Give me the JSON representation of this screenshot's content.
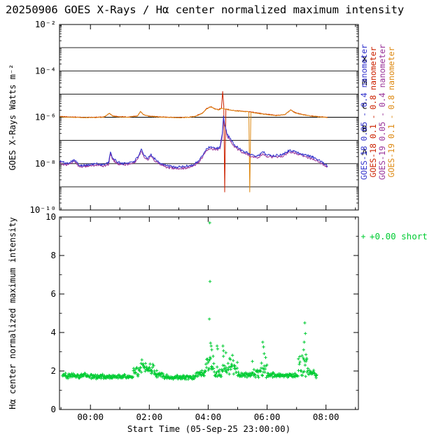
{
  "title": "20250906 GOES X-Rays / Hα center normalized maximum intensity",
  "colors": {
    "background": "#ffffff",
    "axis": "#000000"
  },
  "xaxis": {
    "label": "Start Time (05-Sep-25 23:00:00)",
    "range_hours": [
      -1.05,
      9.1
    ],
    "major_tick_hours": [
      0,
      2,
      4,
      6,
      8
    ],
    "tick_labels": [
      "00:00",
      "02:00",
      "04:00",
      "06:00",
      "08:00"
    ]
  },
  "chart_data": [
    {
      "type": "line",
      "name": "GOES X-Rays",
      "ylabel": "GOES X-Rays Watts m⁻²",
      "yscale": "log",
      "ylim": [
        1e-10,
        0.01
      ],
      "yticks": [
        {
          "value": 0.01,
          "label": "10⁻²"
        },
        {
          "value": 0.0001,
          "label": "10⁻⁴"
        },
        {
          "value": 1e-06,
          "label": "10⁻⁶"
        },
        {
          "value": 1e-08,
          "label": "10⁻⁸"
        },
        {
          "value": 1e-10,
          "label": "10⁻¹⁰"
        }
      ],
      "grid_lines": [
        0.001,
        0.0001,
        1e-05,
        1e-06,
        1e-07,
        1e-08,
        1e-09
      ],
      "flare_classes": [
        {
          "label": "X",
          "value": 0.00032
        },
        {
          "label": "M",
          "value": 3.2e-05
        },
        {
          "label": "C",
          "value": 3.2e-06
        },
        {
          "label": "B",
          "value": 3.2e-07
        },
        {
          "label": "A",
          "value": 3.2e-08
        }
      ],
      "series": [
        {
          "name": "GOES-18 0.05 - 0.4 nanometer",
          "color": "#3333cc",
          "jitter": 0.11,
          "points": [
            [
              -1.05,
              1.3e-08
            ],
            [
              -0.8,
              1e-08
            ],
            [
              -0.55,
              1.5e-08
            ],
            [
              -0.4,
              9e-09
            ],
            [
              -0.2,
              8.5e-09
            ],
            [
              0.0,
              9e-09
            ],
            [
              0.2,
              1e-08
            ],
            [
              0.45,
              9e-09
            ],
            [
              0.62,
              1.1e-08
            ],
            [
              0.68,
              3.2e-08
            ],
            [
              0.75,
              1.8e-08
            ],
            [
              0.9,
              1.2e-08
            ],
            [
              1.1,
              1e-08
            ],
            [
              1.3,
              1.1e-08
            ],
            [
              1.5,
              1.3e-08
            ],
            [
              1.62,
              2e-08
            ],
            [
              1.72,
              4.2e-08
            ],
            [
              1.82,
              2.2e-08
            ],
            [
              1.95,
              1.6e-08
            ],
            [
              2.05,
              2.6e-08
            ],
            [
              2.15,
              1.8e-08
            ],
            [
              2.35,
              1.1e-08
            ],
            [
              2.6,
              8e-09
            ],
            [
              2.9,
              7e-09
            ],
            [
              3.2,
              7.5e-09
            ],
            [
              3.5,
              9e-09
            ],
            [
              3.7,
              1.4e-08
            ],
            [
              3.85,
              2.8e-08
            ],
            [
              3.95,
              4.5e-08
            ],
            [
              4.1,
              5.5e-08
            ],
            [
              4.25,
              4.5e-08
            ],
            [
              4.4,
              5e-08
            ],
            [
              4.48,
              2e-07
            ],
            [
              4.52,
              1.15e-06
            ],
            [
              4.56,
              5e-07
            ],
            [
              4.65,
              1.8e-07
            ],
            [
              4.8,
              9e-08
            ],
            [
              4.95,
              5.5e-08
            ],
            [
              5.1,
              4e-08
            ],
            [
              5.3,
              3e-08
            ],
            [
              5.5,
              2.4e-08
            ],
            [
              5.7,
              2.2e-08
            ],
            [
              5.85,
              3.2e-08
            ],
            [
              5.95,
              2.6e-08
            ],
            [
              6.2,
              2.2e-08
            ],
            [
              6.5,
              2.4e-08
            ],
            [
              6.75,
              3.8e-08
            ],
            [
              6.9,
              3.4e-08
            ],
            [
              7.1,
              2.8e-08
            ],
            [
              7.3,
              2.4e-08
            ],
            [
              7.6,
              1.8e-08
            ],
            [
              7.8,
              1.3e-08
            ],
            [
              8.0,
              9e-09
            ],
            [
              8.05,
              8e-09
            ]
          ]
        },
        {
          "name": "GOES-18 0.1 - 0.8 nanometer",
          "color": "#cc2200",
          "jitter": 0.03,
          "points": [
            [
              -1.05,
              1.08e-06
            ],
            [
              -0.6,
              1.02e-06
            ],
            [
              -0.2,
              9.8e-07
            ],
            [
              0.1,
              1e-06
            ],
            [
              0.45,
              1.02e-06
            ],
            [
              0.65,
              1.45e-06
            ],
            [
              0.75,
              1.15e-06
            ],
            [
              1.0,
              1.05e-06
            ],
            [
              1.3,
              1.02e-06
            ],
            [
              1.6,
              1.15e-06
            ],
            [
              1.7,
              1.75e-06
            ],
            [
              1.8,
              1.3e-06
            ],
            [
              2.0,
              1.12e-06
            ],
            [
              2.3,
              1.05e-06
            ],
            [
              2.7,
              1e-06
            ],
            [
              3.1,
              9.8e-07
            ],
            [
              3.5,
              1.05e-06
            ],
            [
              3.8,
              1.5e-06
            ],
            [
              3.95,
              2.4e-06
            ],
            [
              4.1,
              2.9e-06
            ],
            [
              4.2,
              2.4e-06
            ],
            [
              4.35,
              2.1e-06
            ],
            [
              4.45,
              2.5e-06
            ],
            [
              4.49,
              1.3e-05
            ],
            [
              4.53,
              3e-06
            ],
            [
              4.56,
              6e-10
            ],
            [
              4.6,
              2.3e-06
            ],
            [
              4.8,
              2e-06
            ],
            [
              5.0,
              1.9e-06
            ],
            [
              5.2,
              1.8e-06
            ],
            [
              5.45,
              1.7e-06
            ],
            [
              5.7,
              1.5e-06
            ],
            [
              6.0,
              1.35e-06
            ],
            [
              6.3,
              1.2e-06
            ],
            [
              6.6,
              1.3e-06
            ],
            [
              6.8,
              2.1e-06
            ],
            [
              6.95,
              1.6e-06
            ],
            [
              7.2,
              1.3e-06
            ],
            [
              7.5,
              1.15e-06
            ],
            [
              7.8,
              1.05e-06
            ],
            [
              8.05,
              1e-06
            ]
          ]
        },
        {
          "name": "GOES-19 0.05 - 0.4 nanometer",
          "color": "#993399",
          "jitter": 0.11,
          "points": [
            [
              -1.05,
              1.1e-08
            ],
            [
              -0.8,
              8.5e-09
            ],
            [
              -0.55,
              1.3e-08
            ],
            [
              -0.4,
              8e-09
            ],
            [
              -0.2,
              7.5e-09
            ],
            [
              0.0,
              8e-09
            ],
            [
              0.2,
              9e-09
            ],
            [
              0.45,
              8e-09
            ],
            [
              0.62,
              9.5e-09
            ],
            [
              0.68,
              2.8e-08
            ],
            [
              0.75,
              1.5e-08
            ],
            [
              0.9,
              1e-08
            ],
            [
              1.1,
              9e-09
            ],
            [
              1.3,
              9.5e-09
            ],
            [
              1.5,
              1.1e-08
            ],
            [
              1.62,
              1.7e-08
            ],
            [
              1.72,
              3.6e-08
            ],
            [
              1.82,
              1.9e-08
            ],
            [
              1.95,
              1.4e-08
            ],
            [
              2.05,
              2.2e-08
            ],
            [
              2.15,
              1.5e-08
            ],
            [
              2.35,
              9.5e-09
            ],
            [
              2.6,
              7e-09
            ],
            [
              2.9,
              6e-09
            ],
            [
              3.2,
              6.5e-09
            ],
            [
              3.5,
              8e-09
            ],
            [
              3.7,
              1.2e-08
            ],
            [
              3.85,
              2.4e-08
            ],
            [
              3.95,
              3.8e-08
            ],
            [
              4.1,
              4.7e-08
            ],
            [
              4.25,
              3.8e-08
            ],
            [
              4.4,
              4.3e-08
            ],
            [
              4.48,
              1.7e-07
            ],
            [
              4.52,
              9.5e-07
            ],
            [
              4.56,
              4.3e-07
            ],
            [
              4.65,
              1.5e-07
            ],
            [
              4.8,
              7.5e-08
            ],
            [
              4.95,
              4.7e-08
            ],
            [
              5.1,
              3.4e-08
            ],
            [
              5.3,
              2.6e-08
            ],
            [
              5.5,
              2e-08
            ],
            [
              5.7,
              1.9e-08
            ],
            [
              5.85,
              2.7e-08
            ],
            [
              5.95,
              2.2e-08
            ],
            [
              6.2,
              1.9e-08
            ],
            [
              6.5,
              2e-08
            ],
            [
              6.75,
              3.2e-08
            ],
            [
              6.9,
              2.9e-08
            ],
            [
              7.1,
              2.4e-08
            ],
            [
              7.3,
              2e-08
            ],
            [
              7.6,
              1.5e-08
            ],
            [
              7.8,
              1.1e-08
            ],
            [
              8.0,
              8e-09
            ],
            [
              8.05,
              7e-09
            ]
          ]
        },
        {
          "name": "GOES-19 0.1 - 0.8 nanometer",
          "color": "#dd8811",
          "jitter": 0.03,
          "points": [
            [
              -1.05,
              1.05e-06
            ],
            [
              -0.6,
              1e-06
            ],
            [
              -0.2,
              9.6e-07
            ],
            [
              0.1,
              9.8e-07
            ],
            [
              0.45,
              1e-06
            ],
            [
              0.65,
              1.5e-06
            ],
            [
              0.75,
              1.12e-06
            ],
            [
              1.0,
              1.03e-06
            ],
            [
              1.3,
              1e-06
            ],
            [
              1.6,
              1.12e-06
            ],
            [
              1.7,
              1.8e-06
            ],
            [
              1.8,
              1.28e-06
            ],
            [
              2.0,
              1.1e-06
            ],
            [
              2.3,
              1.03e-06
            ],
            [
              2.7,
              9.8e-07
            ],
            [
              3.1,
              9.6e-07
            ],
            [
              3.5,
              1.03e-06
            ],
            [
              3.8,
              1.45e-06
            ],
            [
              3.95,
              2.3e-06
            ],
            [
              4.1,
              2.8e-06
            ],
            [
              4.2,
              2.35e-06
            ],
            [
              4.35,
              2.05e-06
            ],
            [
              4.45,
              2.4e-06
            ],
            [
              4.55,
              2.3e-06
            ],
            [
              4.7,
              2.05e-06
            ],
            [
              4.9,
              1.9e-06
            ],
            [
              5.1,
              1.8e-06
            ],
            [
              5.38,
              1.7e-06
            ],
            [
              5.41,
              6e-10
            ],
            [
              5.45,
              1.65e-06
            ],
            [
              5.7,
              1.45e-06
            ],
            [
              6.0,
              1.3e-06
            ],
            [
              6.3,
              1.18e-06
            ],
            [
              6.6,
              1.28e-06
            ],
            [
              6.8,
              2.05e-06
            ],
            [
              6.95,
              1.55e-06
            ],
            [
              7.2,
              1.28e-06
            ],
            [
              7.5,
              1.12e-06
            ],
            [
              7.8,
              1.03e-06
            ],
            [
              8.05,
              9.8e-07
            ]
          ]
        }
      ]
    },
    {
      "type": "scatter",
      "name": "H-alpha",
      "ylabel": "Hα center normalized maximum intensity",
      "ylim": [
        0,
        10
      ],
      "yticks": [
        0,
        2,
        4,
        6,
        8,
        10
      ],
      "marker": "plus",
      "color": "#00cc33",
      "legend_label": "+0.00 short",
      "baseline_segments": [
        [
          -0.95,
          0.1,
          1.75,
          0.12
        ],
        [
          0.1,
          1.45,
          1.7,
          0.09
        ],
        [
          1.45,
          1.65,
          1.95,
          0.2
        ],
        [
          1.65,
          1.9,
          2.25,
          0.3
        ],
        [
          1.9,
          2.15,
          2.1,
          0.25
        ],
        [
          2.15,
          2.5,
          1.85,
          0.12
        ],
        [
          2.5,
          3.55,
          1.68,
          0.09
        ],
        [
          3.55,
          3.9,
          1.85,
          0.15
        ],
        [
          3.9,
          4.2,
          2.35,
          0.35
        ],
        [
          4.2,
          4.45,
          1.95,
          0.25
        ],
        [
          4.45,
          5.0,
          2.2,
          0.45
        ],
        [
          5.0,
          5.55,
          1.8,
          0.12
        ],
        [
          5.55,
          6.0,
          2.0,
          0.3
        ],
        [
          6.0,
          7.05,
          1.78,
          0.1
        ],
        [
          7.05,
          7.4,
          2.4,
          0.6
        ],
        [
          7.4,
          7.7,
          1.9,
          0.2
        ]
      ],
      "outliers": [
        [
          4.05,
          9.7
        ],
        [
          4.06,
          6.65
        ],
        [
          4.04,
          4.7
        ],
        [
          4.08,
          3.45
        ],
        [
          4.1,
          3.3
        ],
        [
          4.12,
          3.1
        ],
        [
          4.3,
          3.3
        ],
        [
          4.32,
          3.15
        ],
        [
          4.5,
          3.3
        ],
        [
          4.52,
          3.05
        ],
        [
          4.6,
          2.95
        ],
        [
          4.75,
          2.6
        ],
        [
          5.5,
          2.5
        ],
        [
          5.85,
          3.5
        ],
        [
          5.88,
          3.25
        ],
        [
          5.9,
          2.9
        ],
        [
          5.95,
          2.7
        ],
        [
          7.28,
          4.5
        ],
        [
          7.3,
          3.95
        ],
        [
          7.26,
          3.5
        ],
        [
          7.24,
          3.1
        ],
        [
          7.32,
          2.85
        ],
        [
          7.34,
          2.6
        ]
      ]
    }
  ]
}
